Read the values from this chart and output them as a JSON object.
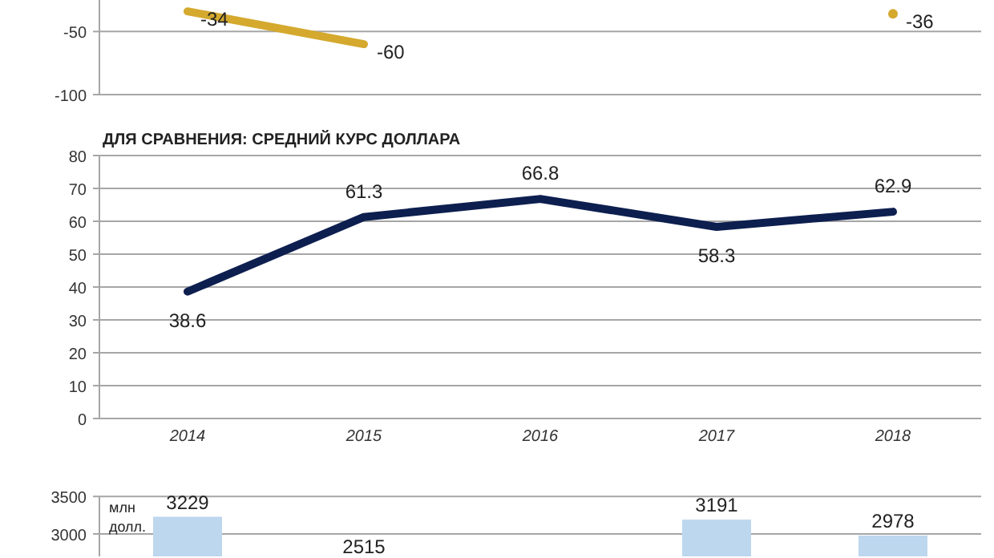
{
  "chart_data": [
    {
      "type": "line",
      "categories": [
        null,
        null,
        null,
        null,
        null
      ],
      "series": [
        {
          "color": "#d4a92e",
          "values": [
            -34,
            -60,
            null,
            null,
            -36
          ]
        }
      ],
      "ylim": [
        -100,
        -25
      ],
      "yticks": [
        -100,
        -50
      ],
      "grid": "y",
      "data_labels": true,
      "tick_labels": "y"
    },
    {
      "type": "line",
      "title": "ДЛЯ СРАВНЕНИЯ: СРЕДНИЙ КУРС ДОЛЛАРА",
      "categories": [
        "2014",
        "2015",
        "2016",
        "2017",
        "2018"
      ],
      "series": [
        {
          "color": "#0d1f4f",
          "values": [
            38.6,
            61.3,
            66.8,
            58.3,
            62.9
          ]
        }
      ],
      "ylim": [
        0,
        80
      ],
      "yticks": [
        0,
        10,
        20,
        30,
        40,
        50,
        60,
        70,
        80
      ],
      "grid": "y",
      "data_labels": true
    },
    {
      "type": "bar",
      "ylabel": "млн долл.",
      "categories": [
        null,
        null,
        null,
        null,
        null
      ],
      "series": [
        {
          "color": "#bdd7ee",
          "values": [
            3229,
            null,
            null,
            3191,
            2978
          ]
        }
      ],
      "ylim": [
        2700,
        3500
      ],
      "yticks": [
        3000,
        3500
      ],
      "grid": "y",
      "data_labels": true,
      "tick_labels": "y",
      "annotations": [
        "2515"
      ]
    }
  ]
}
